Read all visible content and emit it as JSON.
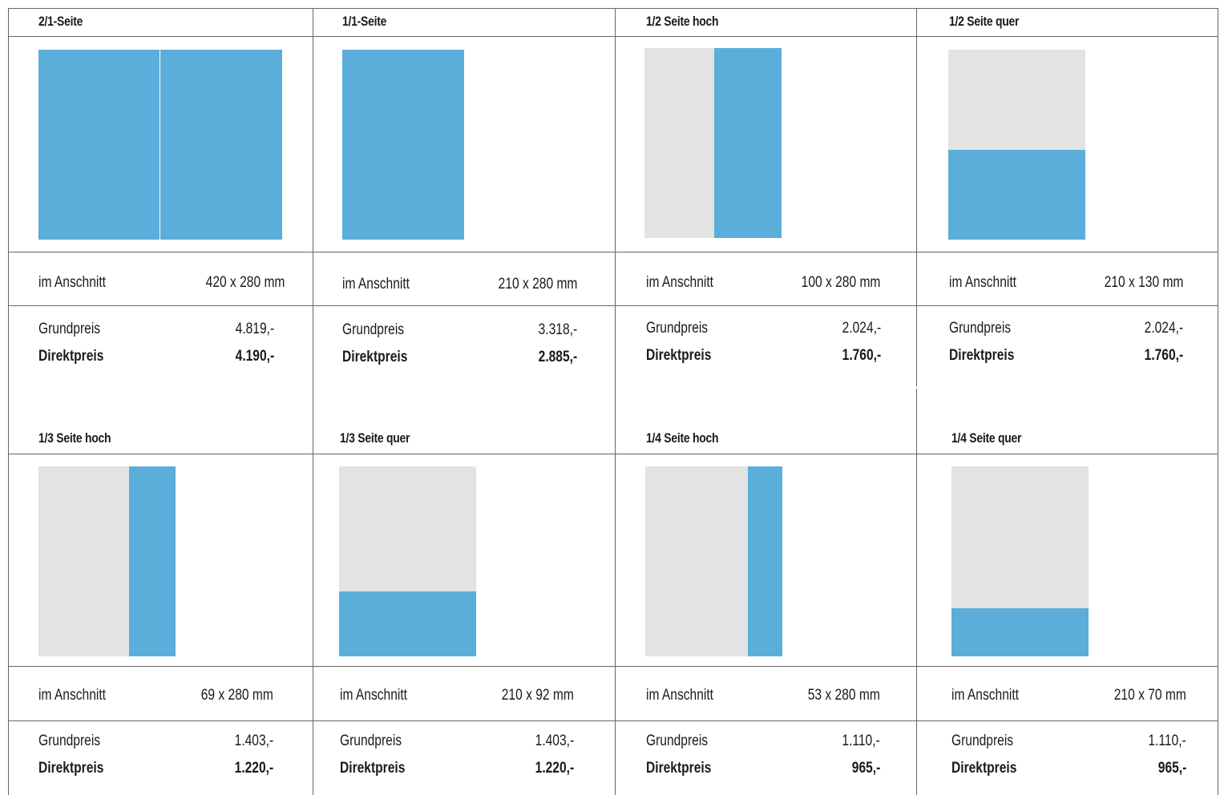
{
  "colors": {
    "ad_area": "#5aaed9",
    "page_area": "#e3e3e3",
    "rule": "#666666"
  },
  "formats": [
    {
      "title": "2/1-Seite",
      "size_label": "im Anschnitt",
      "size": "420 x 280 mm",
      "base_label": "Grundpreis",
      "base_price": "4.819,-",
      "direct_label": "Direktpreis",
      "direct_price": "4.190,-",
      "coverage": "2 full pages"
    },
    {
      "title": "1/1-Seite",
      "size_label": "im Anschnitt",
      "size": "210 x 280 mm",
      "base_label": "Grundpreis",
      "base_price": "3.318,-",
      "direct_label": "Direktpreis",
      "direct_price": "2.885,-",
      "coverage": "1 full page"
    },
    {
      "title": "1/2 Seite hoch",
      "size_label": "im Anschnitt",
      "size": "100 x 280 mm",
      "base_label": "Grundpreis",
      "base_price": "2.024,-",
      "direct_label": "Direktpreis",
      "direct_price": "1.760,-",
      "coverage": "right half, vertical"
    },
    {
      "title": "1/2 Seite quer",
      "size_label": "im Anschnitt",
      "size": "210 x 130 mm",
      "base_label": "Grundpreis",
      "base_price": "2.024,-",
      "direct_label": "Direktpreis",
      "direct_price": "1.760,-",
      "coverage": "bottom half, horizontal"
    },
    {
      "title": "1/3 Seite hoch",
      "size_label": "im Anschnitt",
      "size": "69 x 280 mm",
      "base_label": "Grundpreis",
      "base_price": "1.403,-",
      "direct_label": "Direktpreis",
      "direct_price": "1.220,-",
      "coverage": "right third, vertical"
    },
    {
      "title": "1/3 Seite quer",
      "size_label": "im Anschnitt",
      "size": "210 x 92 mm",
      "base_label": "Grundpreis",
      "base_price": "1.403,-",
      "direct_label": "Direktpreis",
      "direct_price": "1.220,-",
      "coverage": "bottom third, horizontal"
    },
    {
      "title": "1/4 Seite hoch",
      "size_label": "im Anschnitt",
      "size": "53 x 280 mm",
      "base_label": "Grundpreis",
      "base_price": "1.110,-",
      "direct_label": "Direktpreis",
      "direct_price": "965,-",
      "coverage": "right quarter, vertical"
    },
    {
      "title": "1/4 Seite quer",
      "size_label": "im Anschnitt",
      "size": "210 x 70 mm",
      "base_label": "Grundpreis",
      "base_price": "1.110,-",
      "direct_label": "Direktpreis",
      "direct_price": "965,-",
      "coverage": "bottom quarter, horizontal"
    }
  ]
}
